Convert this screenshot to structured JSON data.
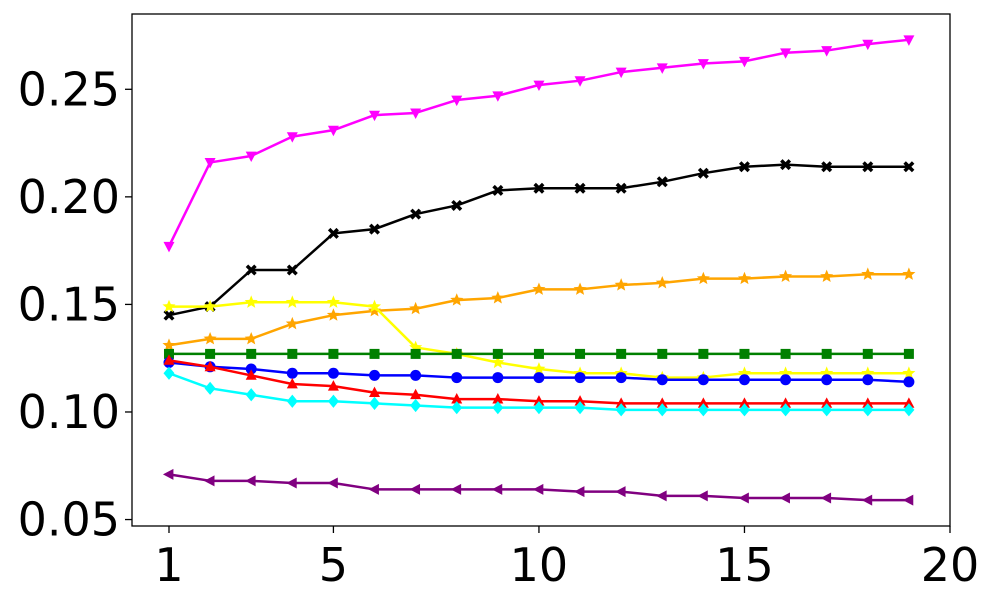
{
  "chart_data": {
    "type": "line",
    "title": "",
    "xlabel": "",
    "ylabel": "",
    "xlim": [
      0.1,
      20
    ],
    "ylim": [
      0.047,
      0.285
    ],
    "x_ticks": [
      1,
      5,
      10,
      15,
      20
    ],
    "x_tick_labels": [
      "1",
      "5",
      "10",
      "15",
      "20"
    ],
    "y_ticks": [
      0.05,
      0.1,
      0.15,
      0.2,
      0.25
    ],
    "y_tick_labels": [
      "0.05",
      "0.10",
      "0.15",
      "0.20",
      "0.25"
    ],
    "grid": false,
    "legend": "none",
    "x": [
      1,
      2,
      3,
      4,
      5,
      6,
      7,
      8,
      9,
      10,
      11,
      12,
      13,
      14,
      15,
      16,
      17,
      18,
      19
    ],
    "series": [
      {
        "color": "#ff00ff",
        "marker": "triangle-down",
        "values": [
          0.177,
          0.216,
          0.219,
          0.228,
          0.231,
          0.238,
          0.239,
          0.245,
          0.247,
          0.252,
          0.254,
          0.258,
          0.26,
          0.262,
          0.263,
          0.267,
          0.268,
          0.271,
          0.273
        ]
      },
      {
        "color": "#000000",
        "marker": "x",
        "values": [
          0.145,
          0.149,
          0.166,
          0.166,
          0.183,
          0.185,
          0.192,
          0.196,
          0.203,
          0.204,
          0.204,
          0.204,
          0.207,
          0.211,
          0.214,
          0.215,
          0.214,
          0.214,
          0.214
        ]
      },
      {
        "color": "#ffa500",
        "marker": "star",
        "values": [
          0.131,
          0.134,
          0.134,
          0.141,
          0.145,
          0.147,
          0.148,
          0.152,
          0.153,
          0.157,
          0.157,
          0.159,
          0.16,
          0.162,
          0.162,
          0.163,
          0.163,
          0.164,
          0.164
        ]
      },
      {
        "color": "#ffff00",
        "marker": "star",
        "values": [
          0.149,
          0.149,
          0.151,
          0.151,
          0.151,
          0.149,
          0.13,
          0.127,
          0.123,
          0.12,
          0.118,
          0.118,
          0.116,
          0.116,
          0.118,
          0.118,
          0.118,
          0.118,
          0.118
        ]
      },
      {
        "color": "#008000",
        "marker": "square",
        "values": [
          0.127,
          0.127,
          0.127,
          0.127,
          0.127,
          0.127,
          0.127,
          0.127,
          0.127,
          0.127,
          0.127,
          0.127,
          0.127,
          0.127,
          0.127,
          0.127,
          0.127,
          0.127,
          0.127
        ]
      },
      {
        "color": "#0000ff",
        "marker": "circle",
        "values": [
          0.123,
          0.121,
          0.12,
          0.118,
          0.118,
          0.117,
          0.117,
          0.116,
          0.116,
          0.116,
          0.116,
          0.116,
          0.115,
          0.115,
          0.115,
          0.115,
          0.115,
          0.115,
          0.114
        ]
      },
      {
        "color": "#ff0000",
        "marker": "triangle-up",
        "values": [
          0.124,
          0.121,
          0.117,
          0.113,
          0.112,
          0.109,
          0.108,
          0.106,
          0.106,
          0.105,
          0.105,
          0.104,
          0.104,
          0.104,
          0.104,
          0.104,
          0.104,
          0.104,
          0.104
        ]
      },
      {
        "color": "#00ffff",
        "marker": "diamond",
        "values": [
          0.118,
          0.111,
          0.108,
          0.105,
          0.105,
          0.104,
          0.103,
          0.102,
          0.102,
          0.102,
          0.102,
          0.101,
          0.101,
          0.101,
          0.101,
          0.101,
          0.101,
          0.101,
          0.101
        ]
      },
      {
        "color": "#800080",
        "marker": "triangle-left",
        "values": [
          0.071,
          0.068,
          0.068,
          0.067,
          0.067,
          0.064,
          0.064,
          0.064,
          0.064,
          0.064,
          0.063,
          0.063,
          0.061,
          0.061,
          0.06,
          0.06,
          0.06,
          0.059,
          0.059
        ]
      }
    ]
  }
}
